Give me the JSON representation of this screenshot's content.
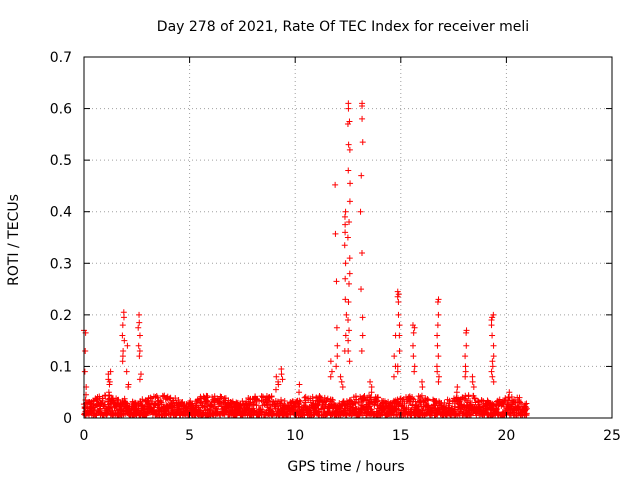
{
  "chart_data": {
    "type": "scatter",
    "title": "Day 278 of 2021, Rate Of TEC Index for receiver meli",
    "xlabel": "GPS time / hours",
    "ylabel": "ROTI / TECUs",
    "xlim": [
      0,
      25
    ],
    "ylim": [
      0,
      0.7
    ],
    "xticks": [
      "0",
      "5",
      "10",
      "15",
      "20",
      "25"
    ],
    "yticks": [
      "0",
      "0.1",
      "0.2",
      "0.3",
      "0.4",
      "0.5",
      "0.6",
      "0.7"
    ],
    "grid": true,
    "marker": "+",
    "series": [
      {
        "name": "ROTI",
        "color": "#ff0000",
        "background_range": {
          "x": [
            0,
            21
          ],
          "y": [
            0.005,
            0.03
          ]
        },
        "spikes": [
          {
            "x": 0.05,
            "values": [
              0.17,
              0.165,
              0.13,
              0.09,
              0.06,
              0.045,
              0.035
            ]
          },
          {
            "x": 1.2,
            "values": [
              0.09,
              0.085,
              0.075,
              0.07,
              0.065,
              0.05
            ]
          },
          {
            "x": 1.85,
            "values": [
              0.205,
              0.195,
              0.18,
              0.16,
              0.15,
              0.13,
              0.12,
              0.11
            ]
          },
          {
            "x": 2.05,
            "values": [
              0.14,
              0.09,
              0.065,
              0.06
            ]
          },
          {
            "x": 2.6,
            "values": [
              0.2,
              0.185,
              0.175,
              0.16,
              0.14,
              0.13,
              0.12
            ]
          },
          {
            "x": 2.65,
            "values": [
              0.085,
              0.075
            ]
          },
          {
            "x": 9.15,
            "values": [
              0.08,
              0.07,
              0.065,
              0.055
            ]
          },
          {
            "x": 9.4,
            "values": [
              0.095,
              0.085,
              0.075
            ]
          },
          {
            "x": 10.2,
            "values": [
              0.065,
              0.05
            ]
          },
          {
            "x": 11.7,
            "values": [
              0.11,
              0.09,
              0.08
            ]
          },
          {
            "x": 11.95,
            "values": [
              0.452,
              0.357,
              0.265,
              0.175,
              0.14,
              0.12,
              0.1
            ]
          },
          {
            "x": 12.2,
            "values": [
              0.08,
              0.07,
              0.06
            ]
          },
          {
            "x": 12.4,
            "values": [
              0.4,
              0.39,
              0.375,
              0.36,
              0.335,
              0.3,
              0.27,
              0.23,
              0.2,
              0.16,
              0.13
            ]
          },
          {
            "x": 12.55,
            "values": [
              0.61,
              0.6,
              0.575,
              0.57,
              0.53,
              0.52,
              0.48,
              0.455,
              0.42,
              0.38,
              0.35,
              0.31,
              0.28,
              0.26,
              0.225,
              0.19,
              0.17,
              0.15,
              0.13,
              0.11
            ]
          },
          {
            "x": 13.15,
            "values": [
              0.61,
              0.605,
              0.58,
              0.535,
              0.47,
              0.4,
              0.32,
              0.25,
              0.195,
              0.16,
              0.13
            ]
          },
          {
            "x": 13.6,
            "values": [
              0.07,
              0.06,
              0.05
            ]
          },
          {
            "x": 14.7,
            "values": [
              0.16,
              0.12,
              0.1,
              0.08
            ]
          },
          {
            "x": 14.9,
            "values": [
              0.245,
              0.24,
              0.235,
              0.225,
              0.2,
              0.18,
              0.16,
              0.13,
              0.1,
              0.09
            ]
          },
          {
            "x": 15.6,
            "values": [
              0.18,
              0.175,
              0.165,
              0.14,
              0.12,
              0.1,
              0.09
            ]
          },
          {
            "x": 16.0,
            "values": [
              0.07,
              0.06
            ]
          },
          {
            "x": 16.75,
            "values": [
              0.23,
              0.225,
              0.2,
              0.18,
              0.16,
              0.14,
              0.12,
              0.1,
              0.09,
              0.08,
              0.07
            ]
          },
          {
            "x": 17.7,
            "values": [
              0.06,
              0.05
            ]
          },
          {
            "x": 18.1,
            "values": [
              0.17,
              0.165,
              0.14,
              0.12,
              0.1,
              0.09,
              0.08
            ]
          },
          {
            "x": 18.4,
            "values": [
              0.08,
              0.07,
              0.06
            ]
          },
          {
            "x": 19.35,
            "values": [
              0.2,
              0.195,
              0.19,
              0.18,
              0.16,
              0.14,
              0.12,
              0.11,
              0.1,
              0.09,
              0.08,
              0.07
            ]
          },
          {
            "x": 20.1,
            "values": [
              0.05,
              0.04
            ]
          },
          {
            "x": 20.6,
            "values": [
              0.035,
              0.03,
              0.02
            ]
          }
        ]
      }
    ]
  }
}
